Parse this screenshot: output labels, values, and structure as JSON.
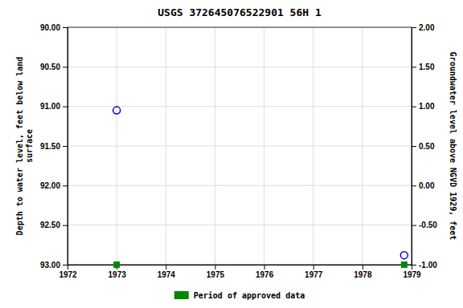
{
  "chart_data": {
    "type": "scatter",
    "title": "USGS 372645076522901 56H  1",
    "ylabel": "Depth to water level, feet below land\nsurface",
    "y2label": "Groundwater level above NGVD 1929, feet",
    "xlim": [
      1972,
      1979
    ],
    "xticks": [
      1972,
      1973,
      1974,
      1975,
      1976,
      1977,
      1978,
      1979
    ],
    "ylim": [
      93.0,
      90.0
    ],
    "yticks": [
      {
        "value": 90.0,
        "label": "90.00"
      },
      {
        "value": 90.5,
        "label": "90.50"
      },
      {
        "value": 91.0,
        "label": "91.00"
      },
      {
        "value": 91.5,
        "label": "91.50"
      },
      {
        "value": 92.0,
        "label": "92.00"
      },
      {
        "value": 92.5,
        "label": "92.50"
      },
      {
        "value": 93.0,
        "label": "93.00"
      }
    ],
    "y2lim": [
      -1.0,
      2.0
    ],
    "y2ticks": [
      {
        "value": 2.0,
        "label": "2.00"
      },
      {
        "value": 1.5,
        "label": "1.50"
      },
      {
        "value": 1.0,
        "label": "1.00"
      },
      {
        "value": 0.5,
        "label": "0.50"
      },
      {
        "value": 0.0,
        "label": "0.00"
      },
      {
        "value": -0.5,
        "label": "-0.50"
      },
      {
        "value": -1.0,
        "label": "-1.00"
      }
    ],
    "grid": true,
    "legend": "bottom",
    "series": [
      {
        "color": "#0000cc",
        "marker": "open-circle",
        "x": [
          1973.0,
          1978.85
        ],
        "values": [
          91.05,
          92.88
        ]
      },
      {
        "name": "Period of approved data",
        "color": "#008800",
        "marker": "square",
        "x": [
          1973.0,
          1978.85
        ],
        "values": [
          93.0,
          93.0
        ]
      }
    ]
  }
}
